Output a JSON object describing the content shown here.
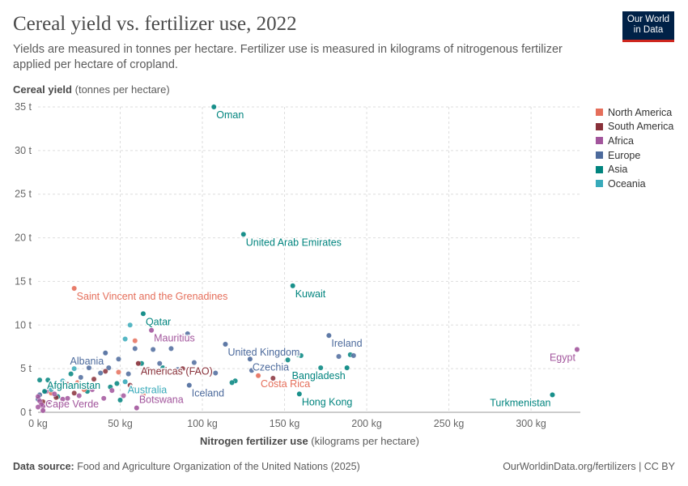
{
  "header": {
    "title": "Cereal yield vs. fertilizer use, 2022",
    "subtitle": "Yields are measured in tonnes per hectare. Fertilizer use is measured in kilograms of nitrogenous fertilizer applied per hectare of cropland.",
    "logo_line1": "Our World",
    "logo_line2": "in Data"
  },
  "footer": {
    "source_label": "Data source:",
    "source_text": "Food and Agriculture Organization of the United Nations (2025)",
    "url": "OurWorldinData.org/fertilizers | CC BY"
  },
  "axes": {
    "y_label_bold": "Cereal yield",
    "y_label_unit": "(tonnes per hectare)",
    "x_label_bold": "Nitrogen fertilizer use",
    "x_label_unit": "(kilograms per hectare)"
  },
  "colors": {
    "North America": "#e56e5a",
    "South America": "#883039",
    "Africa": "#a2559c",
    "Europe": "#4c6a9c",
    "Asia": "#00847e",
    "Oceania": "#38aaba",
    "grid": "#dddddd",
    "tick_text": "#666666"
  },
  "chart_data": {
    "type": "scatter",
    "title": "Cereal yield vs. fertilizer use, 2022",
    "xlabel": "Nitrogen fertilizer use (kilograms per hectare)",
    "ylabel": "Cereal yield (tonnes per hectare)",
    "xlim": [
      0,
      330
    ],
    "ylim": [
      0,
      35
    ],
    "x_ticks": [
      0,
      50,
      100,
      150,
      200,
      250,
      300
    ],
    "x_tick_labels": [
      "0 kg",
      "50 kg",
      "100 kg",
      "150 kg",
      "200 kg",
      "250 kg",
      "300 kg"
    ],
    "y_ticks": [
      0,
      5,
      10,
      15,
      20,
      25,
      30,
      35
    ],
    "y_tick_labels": [
      "0 t",
      "5 t",
      "10 t",
      "15 t",
      "20 t",
      "25 t",
      "30 t",
      "35 t"
    ],
    "grid": true,
    "legend_position": "right",
    "legend": [
      "North America",
      "South America",
      "Africa",
      "Europe",
      "Asia",
      "Oceania"
    ],
    "labeled_points": [
      {
        "label": "Oman",
        "region": "Asia",
        "x": 107,
        "y": 35,
        "anchor": "start"
      },
      {
        "label": "United Arab Emirates",
        "region": "Asia",
        "x": 125,
        "y": 20.4,
        "anchor": "start"
      },
      {
        "label": "Kuwait",
        "region": "Asia",
        "x": 155,
        "y": 14.5,
        "anchor": "start"
      },
      {
        "label": "Saint Vincent and the Grenadines",
        "region": "North America",
        "x": 22,
        "y": 14.2,
        "anchor": "start"
      },
      {
        "label": "Qatar",
        "region": "Asia",
        "x": 64,
        "y": 11.3,
        "anchor": "start"
      },
      {
        "label": "Mauritius",
        "region": "Africa",
        "x": 69,
        "y": 9.4,
        "anchor": "start"
      },
      {
        "label": "Ireland",
        "region": "Europe",
        "x": 177,
        "y": 8.8,
        "anchor": "start"
      },
      {
        "label": "United Kingdom",
        "region": "Europe",
        "x": 114,
        "y": 7.8,
        "anchor": "start"
      },
      {
        "label": "Egypt",
        "region": "Africa",
        "x": 328,
        "y": 7.2,
        "anchor": "end"
      },
      {
        "label": "Czechia",
        "region": "Europe",
        "x": 129,
        "y": 6.1,
        "anchor": "start"
      },
      {
        "label": "Bangladesh",
        "region": "Asia",
        "x": 188,
        "y": 5.1,
        "anchor": "end"
      },
      {
        "label": "Albania",
        "region": "Europe",
        "x": 41,
        "y": 6.8,
        "anchor": "end"
      },
      {
        "label": "Americas (FAO)",
        "region": "South America",
        "x": 61,
        "y": 5.6,
        "anchor": "start"
      },
      {
        "label": "Costa Rica",
        "region": "North America",
        "x": 134,
        "y": 4.2,
        "anchor": "start"
      },
      {
        "label": "Iceland",
        "region": "Europe",
        "x": 92,
        "y": 3.1,
        "anchor": "start"
      },
      {
        "label": "Australia",
        "region": "Oceania",
        "x": 53,
        "y": 3.5,
        "anchor": "start"
      },
      {
        "label": "Hong Kong",
        "region": "Asia",
        "x": 159,
        "y": 2.1,
        "anchor": "start"
      },
      {
        "label": "Turkmenistan",
        "region": "Asia",
        "x": 313,
        "y": 2.0,
        "anchor": "end"
      },
      {
        "label": "Afghanistan",
        "region": "Asia",
        "x": 4,
        "y": 2.4,
        "anchor": "start"
      },
      {
        "label": "Botswana",
        "region": "Africa",
        "x": 60,
        "y": 0.5,
        "anchor": "start"
      },
      {
        "label": "Cape Verde",
        "region": "Africa",
        "x": 3,
        "y": 0.2,
        "anchor": "start"
      }
    ],
    "other_points": [
      {
        "region": "Asia",
        "x": 120,
        "y": 3.6
      },
      {
        "region": "Asia",
        "x": 118,
        "y": 3.4
      },
      {
        "region": "Asia",
        "x": 152,
        "y": 6.0
      },
      {
        "region": "Asia",
        "x": 158,
        "y": 6.6
      },
      {
        "region": "Asia",
        "x": 160,
        "y": 6.5
      },
      {
        "region": "Asia",
        "x": 172,
        "y": 5.1
      },
      {
        "region": "Asia",
        "x": 190,
        "y": 6.6
      },
      {
        "region": "Asia",
        "x": 63,
        "y": 5.6
      },
      {
        "region": "Asia",
        "x": 58,
        "y": 2.6
      },
      {
        "region": "Asia",
        "x": 50,
        "y": 1.4
      },
      {
        "region": "Asia",
        "x": 44,
        "y": 2.9
      },
      {
        "region": "Asia",
        "x": 30,
        "y": 2.4
      },
      {
        "region": "Asia",
        "x": 12,
        "y": 1.8
      },
      {
        "region": "Asia",
        "x": 6,
        "y": 3.7
      },
      {
        "region": "Asia",
        "x": 1,
        "y": 3.7
      },
      {
        "region": "Asia",
        "x": 20,
        "y": 4.4
      },
      {
        "region": "Asia",
        "x": 76,
        "y": 5.1
      },
      {
        "region": "Asia",
        "x": 48,
        "y": 3.3
      },
      {
        "region": "Europe",
        "x": 183,
        "y": 6.4
      },
      {
        "region": "Europe",
        "x": 192,
        "y": 6.5
      },
      {
        "region": "Europe",
        "x": 91,
        "y": 9.0
      },
      {
        "region": "Europe",
        "x": 81,
        "y": 7.3
      },
      {
        "region": "Europe",
        "x": 70,
        "y": 7.2
      },
      {
        "region": "Europe",
        "x": 74,
        "y": 5.6
      },
      {
        "region": "Europe",
        "x": 65,
        "y": 4.8
      },
      {
        "region": "Europe",
        "x": 108,
        "y": 4.5
      },
      {
        "region": "Europe",
        "x": 95,
        "y": 5.7
      },
      {
        "region": "Europe",
        "x": 85,
        "y": 4.9
      },
      {
        "region": "Europe",
        "x": 55,
        "y": 4.4
      },
      {
        "region": "Europe",
        "x": 49,
        "y": 6.1
      },
      {
        "region": "Europe",
        "x": 38,
        "y": 4.5
      },
      {
        "region": "Europe",
        "x": 31,
        "y": 5.1
      },
      {
        "region": "Europe",
        "x": 59,
        "y": 7.3
      },
      {
        "region": "Europe",
        "x": 130,
        "y": 4.8
      },
      {
        "region": "Europe",
        "x": 26,
        "y": 4.0
      },
      {
        "region": "Europe",
        "x": 43,
        "y": 5.1
      },
      {
        "region": "Europe",
        "x": 0,
        "y": 1.5
      },
      {
        "region": "Europe",
        "x": 1,
        "y": 2.0
      },
      {
        "region": "North America",
        "x": 59,
        "y": 8.2
      },
      {
        "region": "North America",
        "x": 24,
        "y": 3.4
      },
      {
        "region": "North America",
        "x": 49,
        "y": 4.6
      },
      {
        "region": "North America",
        "x": 19,
        "y": 2.9
      },
      {
        "region": "North America",
        "x": 28,
        "y": 2.6
      },
      {
        "region": "North America",
        "x": 64,
        "y": 2.0
      },
      {
        "region": "North America",
        "x": 8,
        "y": 2.2
      },
      {
        "region": "South America",
        "x": 143,
        "y": 3.9
      },
      {
        "region": "South America",
        "x": 88,
        "y": 5.0
      },
      {
        "region": "South America",
        "x": 84,
        "y": 4.6
      },
      {
        "region": "South America",
        "x": 34,
        "y": 3.8
      },
      {
        "region": "South America",
        "x": 18,
        "y": 3.2
      },
      {
        "region": "South America",
        "x": 41,
        "y": 4.7
      },
      {
        "region": "South America",
        "x": 67,
        "y": 4.9
      },
      {
        "region": "South America",
        "x": 22,
        "y": 2.2
      },
      {
        "region": "South America",
        "x": 11,
        "y": 1.7
      },
      {
        "region": "South America",
        "x": 3,
        "y": 1.2
      },
      {
        "region": "South America",
        "x": 56,
        "y": 3.1
      },
      {
        "region": "Africa",
        "x": 40,
        "y": 1.6
      },
      {
        "region": "Africa",
        "x": 33,
        "y": 2.6
      },
      {
        "region": "Africa",
        "x": 45,
        "y": 2.5
      },
      {
        "region": "Africa",
        "x": 52,
        "y": 1.9
      },
      {
        "region": "Africa",
        "x": 15,
        "y": 1.5
      },
      {
        "region": "Africa",
        "x": 18,
        "y": 1.6
      },
      {
        "region": "Africa",
        "x": 10,
        "y": 2.1
      },
      {
        "region": "Africa",
        "x": 7,
        "y": 1.2
      },
      {
        "region": "Africa",
        "x": 3,
        "y": 0.7
      },
      {
        "region": "Africa",
        "x": 1,
        "y": 1.3
      },
      {
        "region": "Africa",
        "x": 2,
        "y": 0.9
      },
      {
        "region": "Africa",
        "x": 25,
        "y": 1.9
      },
      {
        "region": "Africa",
        "x": 14,
        "y": 0.9
      },
      {
        "region": "Africa",
        "x": 5,
        "y": 2.4
      },
      {
        "region": "Africa",
        "x": 0,
        "y": 1.8
      },
      {
        "region": "Africa",
        "x": 0,
        "y": 0.6
      },
      {
        "region": "Oceania",
        "x": 56,
        "y": 10.0
      },
      {
        "region": "Oceania",
        "x": 53,
        "y": 8.4
      },
      {
        "region": "Oceania",
        "x": 22,
        "y": 5.0
      },
      {
        "region": "Oceania",
        "x": 15,
        "y": 3.6
      },
      {
        "region": "Oceania",
        "x": 8,
        "y": 2.6
      }
    ]
  }
}
